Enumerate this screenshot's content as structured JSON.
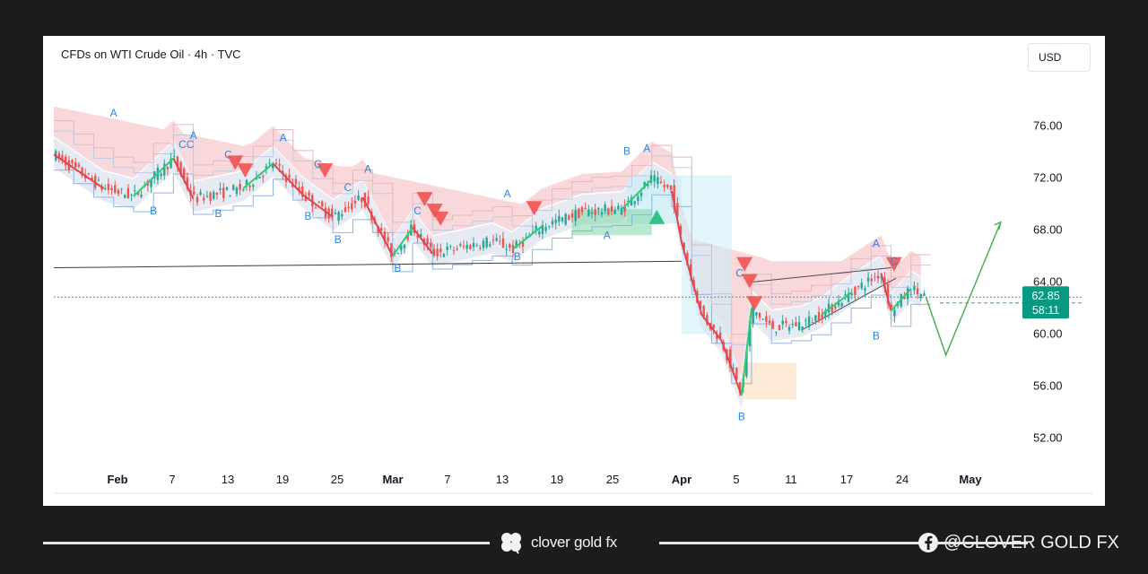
{
  "panel": {
    "title": "CFDs on WTI Crude Oil · 4h · TVC",
    "currency_button": "USD"
  },
  "chart_data": {
    "type": "candlestick",
    "title": "CFDs on WTI Crude Oil · 4h · TVC",
    "currency": "USD",
    "y_ticks": [
      52,
      56,
      60,
      64,
      68,
      72,
      76
    ],
    "y_tick_labels": [
      "52.00",
      "56.00",
      "60.00",
      "64.00",
      "68.00",
      "72.00",
      "76.00"
    ],
    "x_tick_labels": [
      "Feb",
      "7",
      "13",
      "19",
      "25",
      "Mar",
      "7",
      "13",
      "19",
      "25",
      "Apr",
      "5",
      "11",
      "17",
      "24",
      "May"
    ],
    "ylim": [
      49.5,
      80.5
    ],
    "price_label": "62.85",
    "countdown_label": "58:11",
    "approx_close_path": [
      {
        "d": 0,
        "p": 73.8
      },
      {
        "d": 5,
        "p": 71.2
      },
      {
        "d": 8,
        "p": 70.6
      },
      {
        "d": 12,
        "p": 73.5
      },
      {
        "d": 14,
        "p": 70.4
      },
      {
        "d": 19,
        "p": 71.2
      },
      {
        "d": 22,
        "p": 73.1
      },
      {
        "d": 25,
        "p": 70.7
      },
      {
        "d": 28,
        "p": 69.0
      },
      {
        "d": 31,
        "p": 70.5
      },
      {
        "d": 34,
        "p": 66.0
      },
      {
        "d": 36,
        "p": 68.2
      },
      {
        "d": 38,
        "p": 66.2
      },
      {
        "d": 44,
        "p": 67.2
      },
      {
        "d": 46,
        "p": 66.5
      },
      {
        "d": 49,
        "p": 68.3
      },
      {
        "d": 53,
        "p": 69.4
      },
      {
        "d": 57,
        "p": 69.6
      },
      {
        "d": 60,
        "p": 71.9
      },
      {
        "d": 62,
        "p": 71.0
      },
      {
        "d": 63,
        "p": 67.0
      },
      {
        "d": 65,
        "p": 61.5
      },
      {
        "d": 67,
        "p": 59.5
      },
      {
        "d": 69,
        "p": 55.3
      },
      {
        "d": 70,
        "p": 62.0
      },
      {
        "d": 72,
        "p": 60.5
      },
      {
        "d": 75,
        "p": 60.8
      },
      {
        "d": 77,
        "p": 61.5
      },
      {
        "d": 80,
        "p": 63.2
      },
      {
        "d": 83,
        "p": 64.7
      },
      {
        "d": 84,
        "p": 61.8
      },
      {
        "d": 86,
        "p": 63.5
      },
      {
        "d": 87.5,
        "p": 62.85
      }
    ],
    "projection": [
      {
        "d": 87.5,
        "p": 62.85
      },
      {
        "d": 89.5,
        "p": 58.4
      },
      {
        "d": 95,
        "p": 68.6
      }
    ],
    "trendline": [
      {
        "d": 0,
        "p": 65.1
      },
      {
        "d": 63,
        "p": 65.6
      }
    ],
    "wave_labels": [
      {
        "text": "A",
        "d": 6,
        "p": 76.7
      },
      {
        "text": "B",
        "d": 10,
        "p": 69.2
      },
      {
        "text": "CC",
        "d": 13.3,
        "p": 74.3
      },
      {
        "text": "A",
        "d": 14,
        "p": 75.0
      },
      {
        "text": "B",
        "d": 16.5,
        "p": 69.0
      },
      {
        "text": "C",
        "d": 17.5,
        "p": 73.5
      },
      {
        "text": "A",
        "d": 23,
        "p": 74.8
      },
      {
        "text": "B",
        "d": 25.5,
        "p": 68.8
      },
      {
        "text": "C",
        "d": 26.5,
        "p": 72.8
      },
      {
        "text": "B",
        "d": 28.5,
        "p": 67.0
      },
      {
        "text": "C",
        "d": 29.5,
        "p": 71.0
      },
      {
        "text": "A",
        "d": 31.5,
        "p": 72.4
      },
      {
        "text": "B",
        "d": 34.5,
        "p": 64.8
      },
      {
        "text": "C",
        "d": 36.5,
        "p": 69.2
      },
      {
        "text": "A",
        "d": 45.5,
        "p": 70.5
      },
      {
        "text": "B",
        "d": 46.5,
        "p": 65.7
      },
      {
        "text": "B",
        "d": 57.5,
        "p": 73.8
      },
      {
        "text": "A",
        "d": 59.5,
        "p": 74.0
      },
      {
        "text": "A",
        "d": 55.5,
        "p": 67.3
      },
      {
        "text": "C",
        "d": 68.8,
        "p": 64.4
      },
      {
        "text": "B",
        "d": 69,
        "p": 53.4
      },
      {
        "text": "A",
        "d": 82.5,
        "p": 66.7
      },
      {
        "text": "B",
        "d": 82.5,
        "p": 59.6
      },
      {
        "text": "C",
        "d": 84.3,
        "p": 65.3
      }
    ],
    "sell_signals": [
      {
        "d": 18.2,
        "p": 73.1
      },
      {
        "d": 19.2,
        "p": 72.5
      },
      {
        "d": 27.2,
        "p": 72.5
      },
      {
        "d": 37.2,
        "p": 70.3
      },
      {
        "d": 38.2,
        "p": 69.4
      },
      {
        "d": 38.8,
        "p": 68.8
      },
      {
        "d": 48.2,
        "p": 69.6
      },
      {
        "d": 69.3,
        "p": 65.3
      },
      {
        "d": 69.8,
        "p": 64.0
      },
      {
        "d": 70.3,
        "p": 62.3
      },
      {
        "d": 84.3,
        "p": 65.3
      }
    ],
    "buy_signals": [
      {
        "d": 60.5,
        "p": 69.0
      }
    ]
  },
  "footer": {
    "brand": "clover gold fx",
    "social_handle": "@CLOVER GOLD FX",
    "brand_icon": "clover-icon",
    "social_icon": "facebook-icon"
  }
}
